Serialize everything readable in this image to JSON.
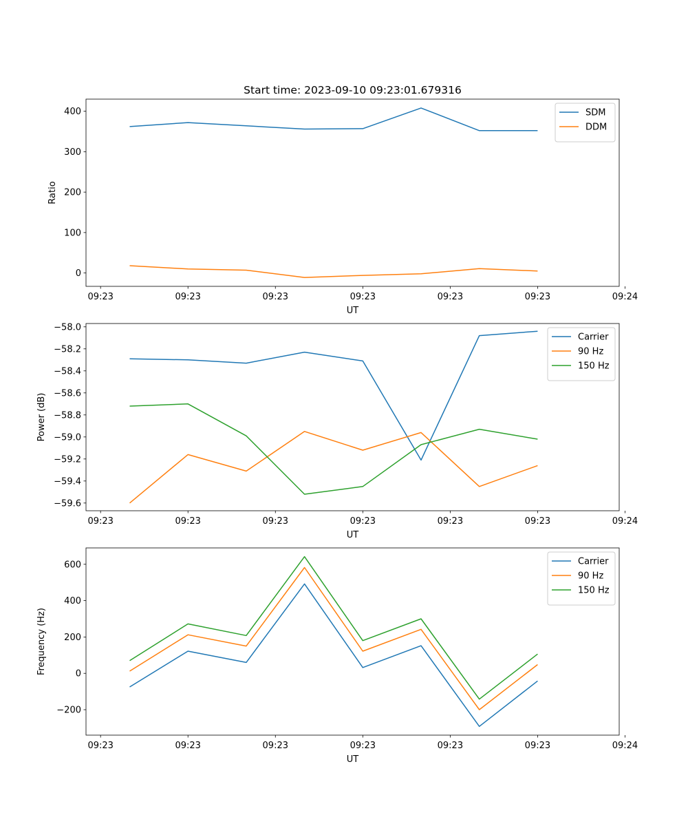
{
  "colors": {
    "series1": "#1f77b4",
    "series2": "#ff7f0e",
    "series3": "#2ca02c"
  },
  "chart_data": [
    {
      "type": "line",
      "title": "Start time: 2023-09-10 09:23:01.679316",
      "xlabel": "UT",
      "ylabel": "Ratio",
      "xlim": [
        -0.75,
        8.4
      ],
      "ylim": [
        -33,
        430
      ],
      "x": [
        0,
        1,
        2,
        3,
        4,
        5,
        6,
        7
      ],
      "x_ticks": [
        -0.5,
        1,
        2.5,
        4,
        5.5,
        7,
        8.5
      ],
      "x_tick_labels": [
        "09:23",
        "09:23",
        "09:23",
        "09:23",
        "09:23",
        "09:23",
        "09:24"
      ],
      "y_ticks": [
        0,
        100,
        200,
        300,
        400
      ],
      "y_tick_labels": [
        "0",
        "100",
        "200",
        "300",
        "400"
      ],
      "legend": "top-right",
      "series": [
        {
          "name": "SDM",
          "values": [
            362,
            372,
            364,
            356,
            357,
            408,
            352,
            352
          ]
        },
        {
          "name": "DDM",
          "values": [
            18,
            10,
            7,
            -11,
            -6,
            -2,
            11,
            5
          ]
        }
      ]
    },
    {
      "type": "line",
      "title": "",
      "xlabel": "UT",
      "ylabel": "Power (dB)",
      "xlim": [
        -0.75,
        8.4
      ],
      "ylim": [
        -59.67,
        -57.97
      ],
      "x": [
        0,
        1,
        2,
        3,
        4,
        5,
        6,
        7
      ],
      "x_ticks": [
        -0.5,
        1,
        2.5,
        4,
        5.5,
        7,
        8.5
      ],
      "x_tick_labels": [
        "09:23",
        "09:23",
        "09:23",
        "09:23",
        "09:23",
        "09:23",
        "09:24"
      ],
      "y_ticks": [
        -58.0,
        -58.2,
        -58.4,
        -58.6,
        -58.8,
        -59.0,
        -59.2,
        -59.4,
        -59.6
      ],
      "y_tick_labels": [
        "−58.0",
        "−58.2",
        "−58.4",
        "−58.6",
        "−58.8",
        "−59.0",
        "−59.2",
        "−59.4",
        "−59.6"
      ],
      "legend": "top-right",
      "series": [
        {
          "name": "Carrier",
          "values": [
            -58.29,
            -58.3,
            -58.33,
            -58.23,
            -58.31,
            -59.21,
            -58.08,
            -58.04
          ]
        },
        {
          "name": "90 Hz",
          "values": [
            -59.6,
            -59.16,
            -59.31,
            -58.95,
            -59.12,
            -58.96,
            -59.45,
            -59.26
          ]
        },
        {
          "name": "150 Hz",
          "values": [
            -58.72,
            -58.7,
            -58.99,
            -59.52,
            -59.45,
            -59.07,
            -58.93,
            -59.02
          ]
        }
      ]
    },
    {
      "type": "line",
      "title": "",
      "xlabel": "UT",
      "ylabel": "Frequency (Hz)",
      "xlim": [
        -0.75,
        8.4
      ],
      "ylim": [
        -340,
        690
      ],
      "x": [
        0,
        1,
        2,
        3,
        4,
        5,
        6,
        7
      ],
      "x_ticks": [
        -0.5,
        1,
        2.5,
        4,
        5.5,
        7,
        8.5
      ],
      "x_tick_labels": [
        "09:23",
        "09:23",
        "09:23",
        "09:23",
        "09:23",
        "09:23",
        "09:24"
      ],
      "y_ticks": [
        -200,
        0,
        200,
        400,
        600
      ],
      "y_tick_labels": [
        "−200",
        "0",
        "200",
        "400",
        "600"
      ],
      "legend": "top-right",
      "series": [
        {
          "name": "Carrier",
          "values": [
            -75,
            122,
            60,
            492,
            32,
            152,
            -292,
            -42
          ]
        },
        {
          "name": "90 Hz",
          "values": [
            12,
            212,
            150,
            582,
            122,
            242,
            -200,
            48
          ]
        },
        {
          "name": "150 Hz",
          "values": [
            70,
            272,
            208,
            642,
            180,
            300,
            -142,
            106
          ]
        }
      ]
    }
  ]
}
